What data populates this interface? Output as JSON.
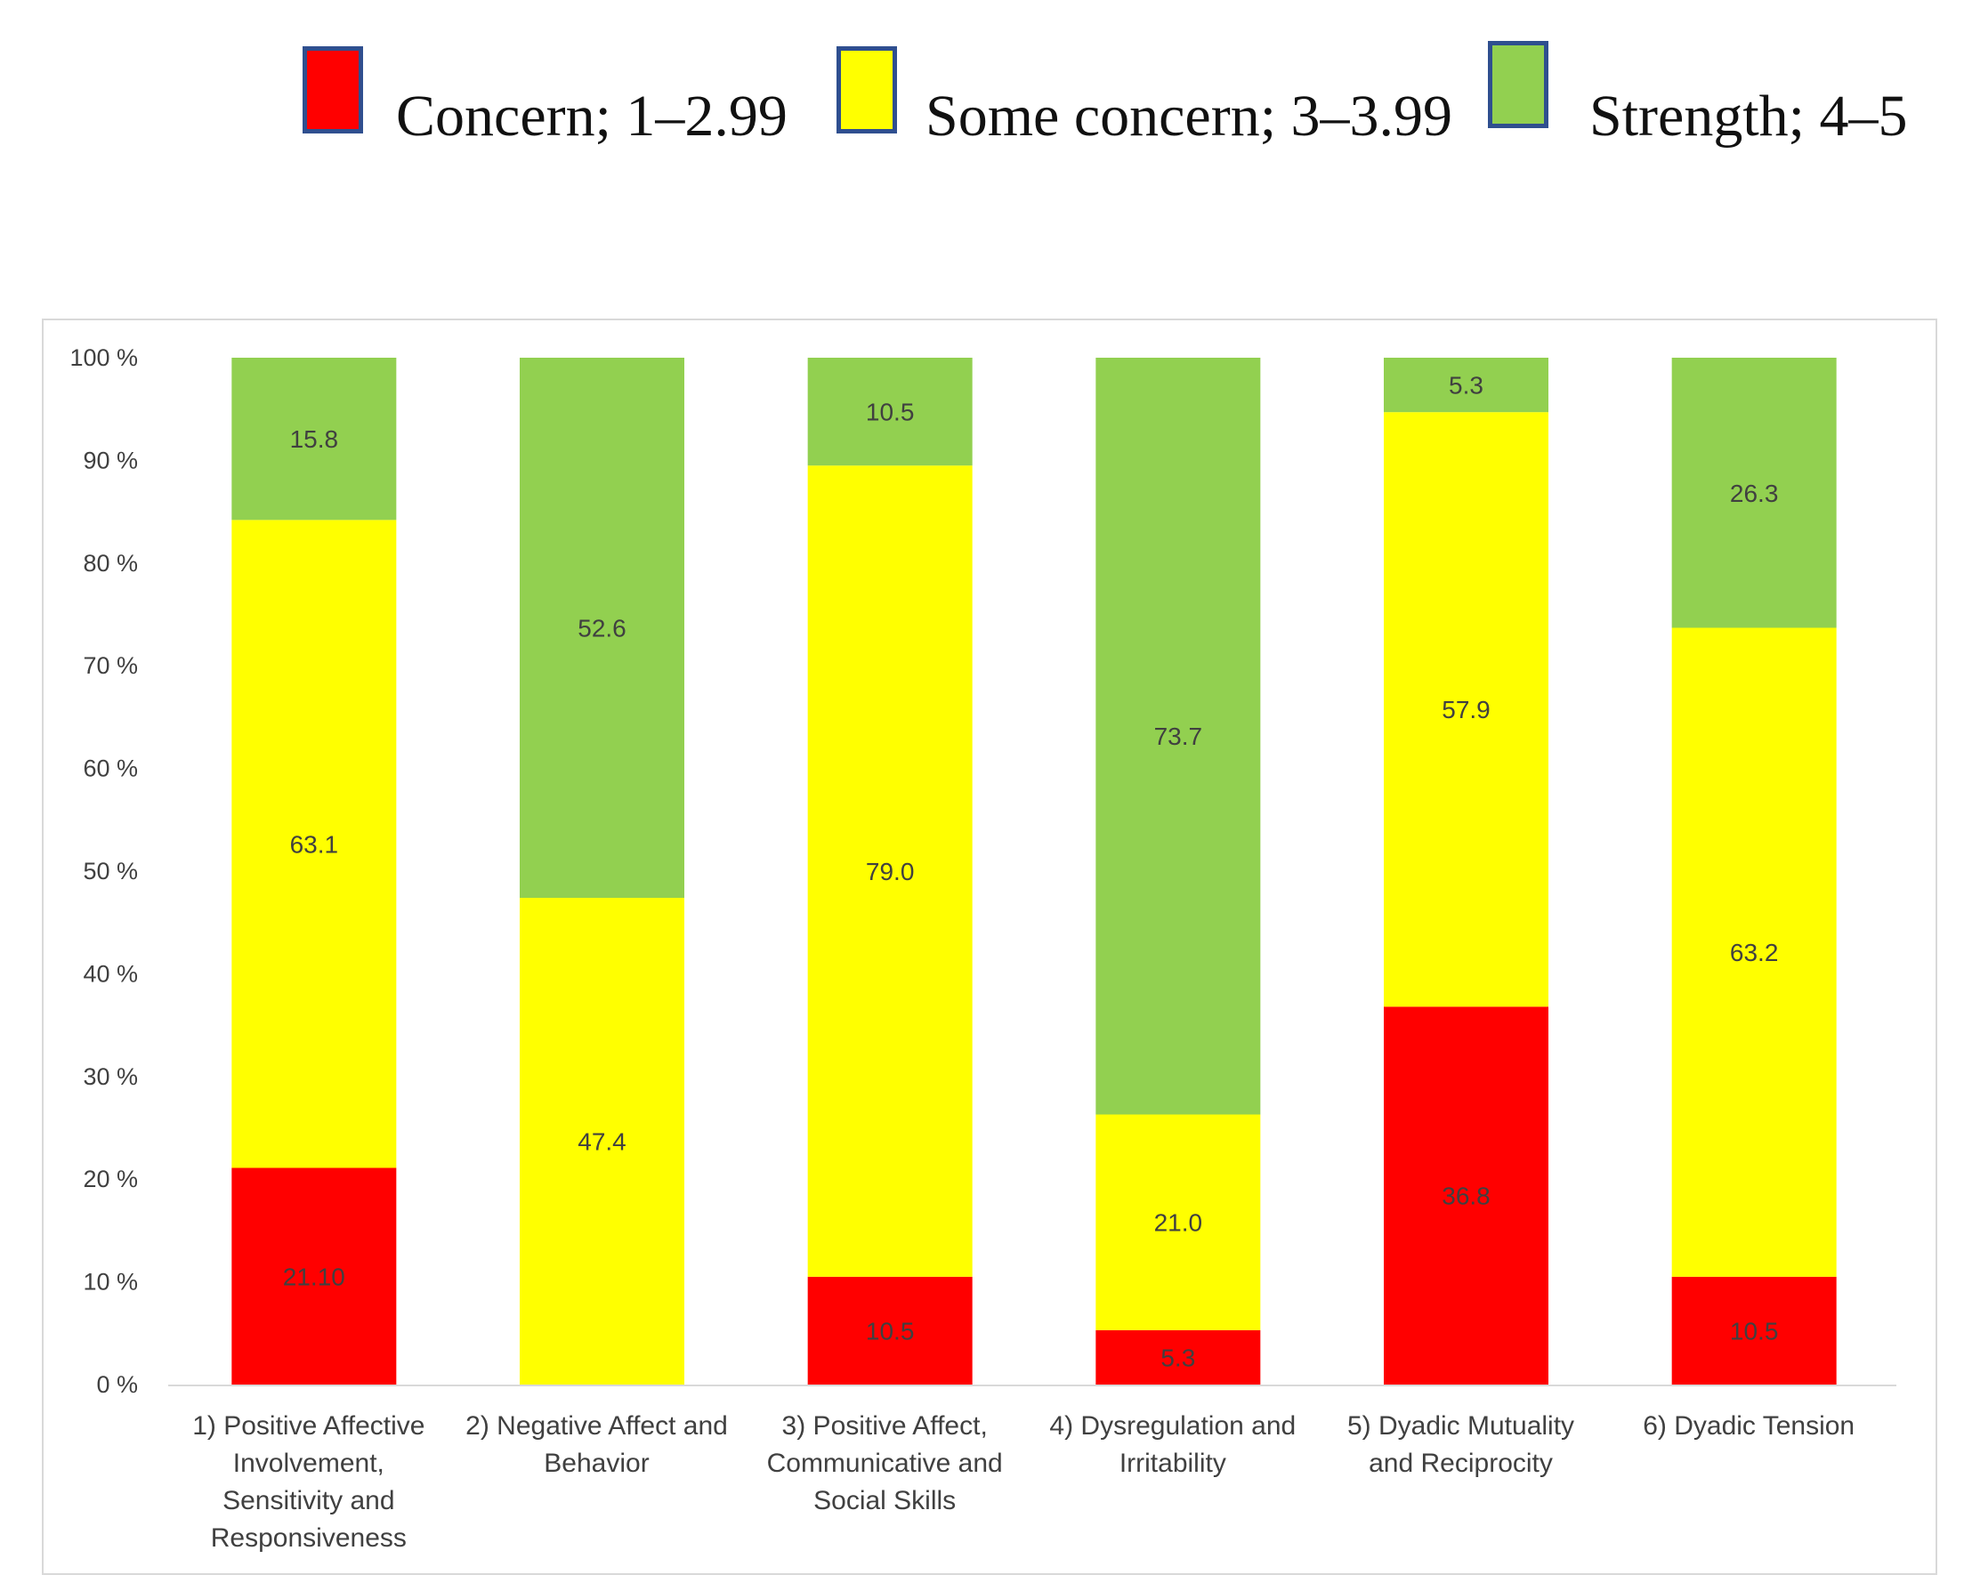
{
  "legend": [
    {
      "label": "Concern; 1–2.99",
      "color": "#ff0000"
    },
    {
      "label": "Some concern; 3–3.99",
      "color": "#ffff00"
    },
    {
      "label": "Strength; 4–5",
      "color": "#92d050"
    }
  ],
  "chart_data": {
    "type": "bar",
    "stacked": true,
    "title": "",
    "xlabel": "",
    "ylabel": "",
    "ylim": [
      0,
      100
    ],
    "y_ticks": [
      "0 %",
      "10 %",
      "20 %",
      "30 %",
      "40 %",
      "50 %",
      "60 %",
      "70 %",
      "80 %",
      "90 %",
      "100 %"
    ],
    "grid": false,
    "legend_position": "top",
    "categories": [
      [
        "1) Positive Affective",
        "Involvement,",
        "Sensitivity and",
        "Responsiveness"
      ],
      [
        "2) Negative Affect and",
        "Behavior"
      ],
      [
        "3) Positive Affect,",
        "Communicative and",
        "Social Skills"
      ],
      [
        "4) Dysregulation and",
        "Irritability"
      ],
      [
        "5) Dyadic Mutuality",
        "and Reciprocity"
      ],
      [
        "6) Dyadic Tension"
      ]
    ],
    "series": [
      {
        "name": "Concern; 1–2.99",
        "color": "#ff0000",
        "values": [
          21.1,
          0,
          10.5,
          5.3,
          36.8,
          10.5
        ],
        "labels": [
          "21.10",
          "",
          "10.5",
          "5.3",
          "36.8",
          "10.5"
        ]
      },
      {
        "name": "Some concern; 3–3.99",
        "color": "#ffff00",
        "values": [
          63.1,
          47.4,
          79.0,
          21.0,
          57.9,
          63.2
        ],
        "labels": [
          "63.1",
          "47.4",
          "79.0",
          "21.0",
          "57.9",
          "63.2"
        ]
      },
      {
        "name": "Strength; 4–5",
        "color": "#92d050",
        "values": [
          15.8,
          52.6,
          10.5,
          73.7,
          5.3,
          26.3
        ],
        "labels": [
          "15.8",
          "52.6",
          "10.5",
          "73.7",
          "5.3",
          "26.3"
        ]
      }
    ]
  }
}
